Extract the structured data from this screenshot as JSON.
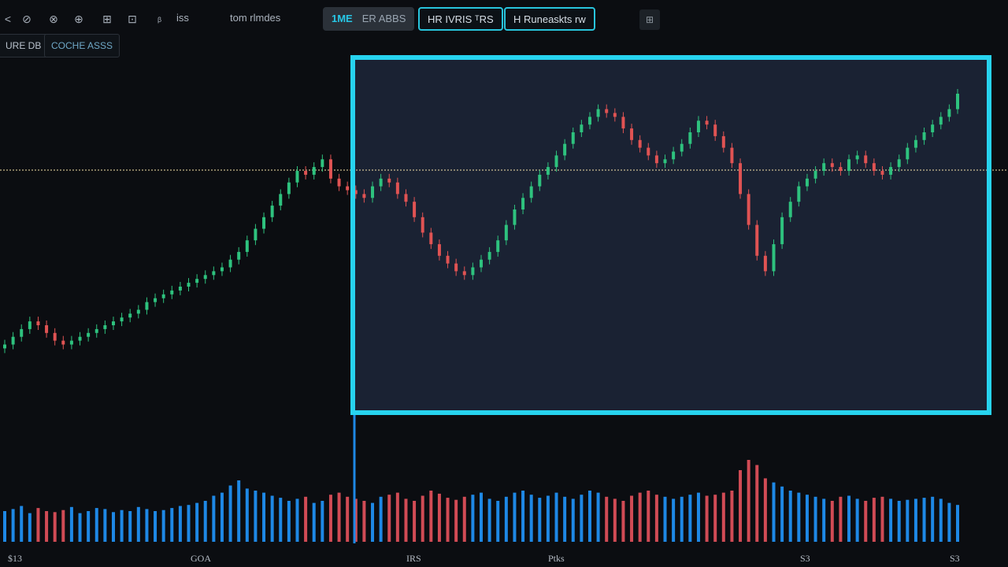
{
  "toolbar": {
    "items": [
      "⊘",
      "⊗",
      "⊕",
      "⊞",
      "⊡"
    ],
    "label_1": "ᵦ",
    "label_2": "iss",
    "label_3": "tom rlmdes",
    "tab_active_accent": "1ME",
    "tab_active_label": "ER ABBS",
    "button_1": "HR IVRIS ᵀRS",
    "button_2": "H Runeaskts rw",
    "menu_icon": "grid-icon"
  },
  "subtabs": [
    "URE DB",
    "COCHE ASSS"
  ],
  "x_axis": [
    "$13",
    "GOA",
    "IRS",
    "Ptks",
    "S3",
    "S3"
  ],
  "colors": {
    "up": "#2ec27e",
    "down": "#e05353",
    "vol_up": "#1e88e5",
    "vol_down": "#d14b55",
    "highlight": "#27d3ef",
    "hline": "#f5e2a8"
  },
  "chart_data": {
    "type": "candlestick",
    "title": "",
    "xlabel": "",
    "ylabel": "",
    "ylim": [
      0,
      100
    ],
    "reference_line": 72.8,
    "close": [
      25,
      27,
      29,
      31,
      30,
      28,
      26,
      25,
      26,
      27,
      28,
      29,
      30,
      31,
      32,
      33,
      34,
      36,
      37,
      38,
      39,
      40,
      41,
      42,
      43,
      44,
      45,
      47,
      49,
      52,
      55,
      58,
      61,
      64,
      67,
      70,
      69,
      71,
      73,
      68,
      66,
      65,
      64,
      63,
      66,
      68,
      67,
      64,
      62,
      58,
      54,
      51,
      48,
      46,
      44,
      43,
      45,
      47,
      49,
      52,
      56,
      60,
      63,
      66,
      69,
      71,
      74,
      77,
      80,
      82,
      84,
      86,
      85,
      84,
      81,
      78,
      76,
      74,
      72,
      73,
      75,
      77,
      80,
      83,
      82,
      79,
      76,
      72,
      64,
      56,
      48,
      44,
      51,
      58,
      62,
      66,
      68,
      70,
      72,
      71,
      70,
      73,
      74,
      72,
      70,
      69,
      71,
      73,
      76,
      78,
      80,
      82,
      84,
      86,
      90
    ],
    "volume": [
      30,
      32,
      35,
      28,
      33,
      30,
      29,
      31,
      34,
      28,
      30,
      33,
      32,
      29,
      31,
      30,
      34,
      32,
      30,
      31,
      33,
      35,
      36,
      38,
      40,
      45,
      48,
      55,
      60,
      52,
      50,
      48,
      45,
      43,
      40,
      42,
      44,
      38,
      40,
      46,
      48,
      44,
      42,
      40,
      38,
      44,
      46,
      48,
      42,
      40,
      45,
      50,
      47,
      43,
      41,
      44,
      46,
      48,
      42,
      40,
      44,
      48,
      50,
      46,
      43,
      45,
      48,
      44,
      42,
      46,
      50,
      48,
      44,
      42,
      40,
      45,
      48,
      50,
      46,
      44,
      42,
      44,
      46,
      48,
      45,
      46,
      48,
      50,
      70,
      80,
      75,
      62,
      58,
      54,
      50,
      48,
      46,
      44,
      42,
      40,
      44,
      45,
      42,
      40,
      43,
      44,
      42,
      40,
      41,
      42,
      43,
      44,
      42,
      38,
      36
    ]
  }
}
